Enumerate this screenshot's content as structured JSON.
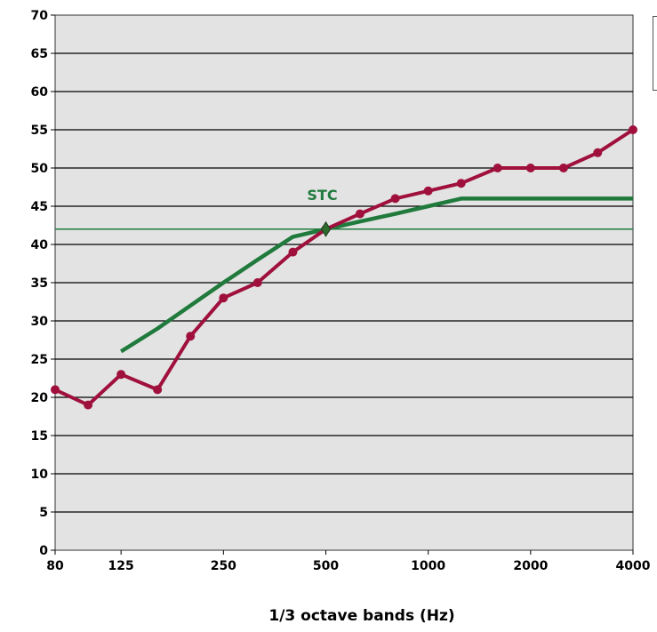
{
  "chart_data": {
    "type": "line",
    "title": "",
    "xlabel": "1/3 octave bands (Hz)",
    "ylabel": "",
    "ylim": [
      0,
      70
    ],
    "yticks": [
      0,
      5,
      10,
      15,
      20,
      25,
      30,
      35,
      40,
      45,
      50,
      55,
      60,
      65,
      70
    ],
    "x_scale": "log",
    "x_bands": [
      80,
      100,
      125,
      160,
      200,
      250,
      315,
      400,
      500,
      630,
      800,
      1000,
      1250,
      1600,
      2000,
      2500,
      3150,
      4000
    ],
    "x_tick_labels": [
      "80",
      "125",
      "250",
      "500",
      "1000",
      "2000",
      "4000"
    ],
    "grid": true,
    "series": [
      {
        "key": "measured",
        "color": "#a0103c",
        "x": [
          80,
          100,
          125,
          160,
          200,
          250,
          315,
          400,
          500,
          630,
          800,
          1000,
          1250,
          1600,
          2000,
          2500,
          3150,
          4000
        ],
        "values": [
          21,
          19,
          23,
          21,
          28,
          33,
          35,
          39,
          42,
          44,
          46,
          47,
          48,
          50,
          50,
          50,
          52,
          55
        ]
      },
      {
        "key": "stc-contour",
        "color": "#1f7a3c",
        "x": [
          125,
          160,
          200,
          250,
          315,
          400,
          500,
          630,
          800,
          1000,
          1250,
          1600,
          2000,
          2500,
          3150,
          4000
        ],
        "values": [
          26,
          29,
          32,
          35,
          38,
          41,
          42,
          43,
          44,
          45,
          46,
          46,
          46,
          46,
          46,
          46
        ]
      }
    ],
    "reference_line": {
      "value": 42,
      "color": "#1f7a3c"
    },
    "annotations": [
      {
        "text": "STC",
        "x": 500,
        "y": 42,
        "color": "#1f7a3c"
      }
    ]
  }
}
